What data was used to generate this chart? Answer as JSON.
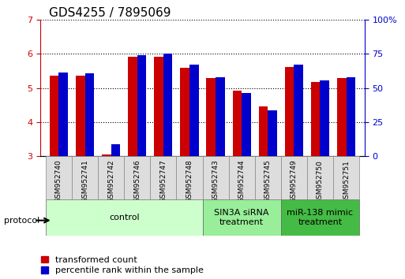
{
  "title": "GDS4255 / 7895069",
  "samples": [
    "GSM952740",
    "GSM952741",
    "GSM952742",
    "GSM952746",
    "GSM952747",
    "GSM952748",
    "GSM952743",
    "GSM952744",
    "GSM952745",
    "GSM952749",
    "GSM952750",
    "GSM952751"
  ],
  "red_values": [
    5.35,
    5.35,
    3.05,
    5.92,
    5.92,
    5.58,
    5.28,
    4.92,
    4.45,
    5.6,
    5.18,
    5.28
  ],
  "blue_values": [
    5.45,
    5.42,
    3.35,
    5.95,
    6.01,
    5.68,
    5.32,
    4.85,
    4.35,
    5.68,
    5.22,
    5.32
  ],
  "ylim_left": [
    3,
    7
  ],
  "ylim_right": [
    0,
    100
  ],
  "yticks_left": [
    3,
    4,
    5,
    6,
    7
  ],
  "yticks_right": [
    0,
    25,
    50,
    75,
    100
  ],
  "ytick_labels_right": [
    "0",
    "25",
    "50",
    "75",
    "100%"
  ],
  "red_color": "#cc0000",
  "blue_color": "#0000cc",
  "bar_width": 0.35,
  "group_configs": [
    {
      "label": "control",
      "indices": [
        0,
        1,
        2,
        3,
        4,
        5
      ],
      "color": "#ccffcc"
    },
    {
      "label": "SIN3A siRNA\ntreatment",
      "indices": [
        6,
        7,
        8
      ],
      "color": "#99ee99"
    },
    {
      "label": "miR-138 mimic\ntreatment",
      "indices": [
        9,
        10,
        11
      ],
      "color": "#44bb44"
    }
  ],
  "protocol_label": "protocol",
  "legend_red": "transformed count",
  "legend_blue": "percentile rank within the sample",
  "left_axis_color": "#cc0000",
  "right_axis_color": "#0000cc",
  "title_fontsize": 11,
  "legend_fontsize": 8,
  "group_label_fontsize": 8,
  "sample_fontsize": 6.5
}
